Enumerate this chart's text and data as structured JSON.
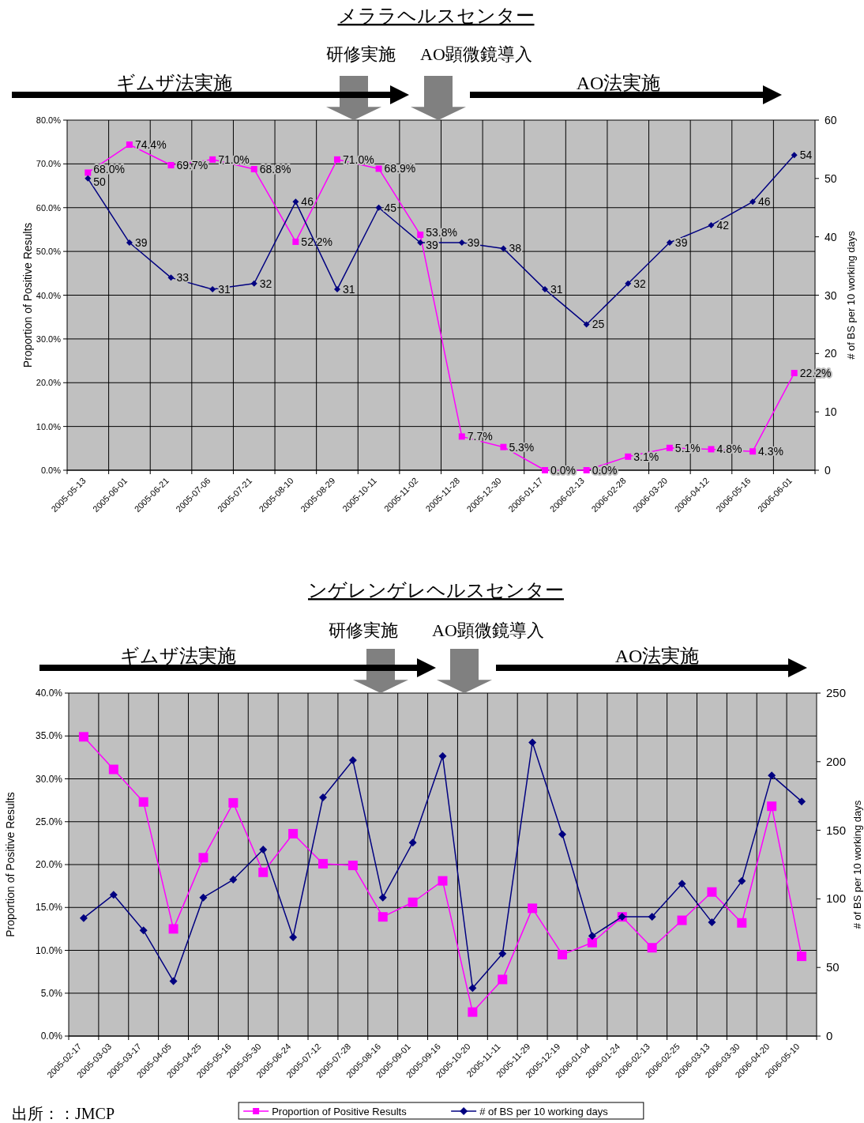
{
  "chart_data": [
    {
      "type": "line",
      "title": "メララヘルスセンター",
      "ylabel": "Proportion of Positive Results",
      "y2label": "# of BS per 10 working days",
      "categories": [
        "2005-05-13",
        "2005-06-01",
        "2005-06-21",
        "2005-07-06",
        "2005-07-21",
        "2005-08-10",
        "2005-08-29",
        "2005-10-11",
        "2005-11-02",
        "2005-11-28",
        "2005-12-30",
        "2006-01-17",
        "2006-02-13",
        "2006-02-28",
        "2006-03-20",
        "2006-04-12",
        "2006-05-16",
        "2006-06-01"
      ],
      "series": [
        {
          "color": "#ff00ff",
          "marker": "square",
          "axis": "y",
          "values": [
            68.0,
            74.4,
            69.7,
            71.0,
            68.8,
            52.2,
            71.0,
            68.9,
            53.8,
            7.7,
            5.3,
            0.0,
            0.0,
            3.1,
            5.1,
            4.8,
            4.3,
            22.2
          ],
          "value_labels": [
            "68.0%",
            "74.4%",
            "69.7%",
            "71.0%",
            "68.8%",
            "52.2%",
            "71.0%",
            "68.9%",
            "53.8%",
            "7.7%",
            "5.3%",
            "0.0%",
            "0.0%",
            "3.1%",
            "5.1%",
            "4.8%",
            "4.3%",
            "22.2%"
          ]
        },
        {
          "color": "#000080",
          "marker": "diamond",
          "axis": "y2",
          "values": [
            50,
            39,
            33,
            31,
            32,
            46,
            31,
            45,
            39,
            39,
            38,
            31,
            25,
            32,
            39,
            42,
            46,
            54
          ],
          "value_labels": [
            "50",
            "39",
            "33",
            "31",
            "32",
            "46",
            "31",
            "45",
            "39",
            "39",
            "38",
            "31",
            "25",
            "32",
            "39",
            "42",
            "46",
            "54"
          ]
        }
      ],
      "ylim": [
        0,
        80
      ],
      "yticks": [
        {
          "value": 0,
          "label": "0.0%"
        },
        {
          "value": 10,
          "label": "10.0%"
        },
        {
          "value": 20,
          "label": "20.0%"
        },
        {
          "value": 30,
          "label": "30.0%"
        },
        {
          "value": 40,
          "label": "40.0%"
        },
        {
          "value": 50,
          "label": "50.0%"
        },
        {
          "value": 60,
          "label": "60.0%"
        },
        {
          "value": 70,
          "label": "70.0%"
        },
        {
          "value": 80,
          "label": "80.0%"
        }
      ],
      "y2lim": [
        0,
        60
      ],
      "y2ticks": [
        0,
        10,
        20,
        30,
        40,
        50,
        60
      ],
      "grid": true,
      "legend": false,
      "annotations": [
        "研修実施",
        "AO顕微鏡導入",
        "ギムザ法実施",
        "AO法実施"
      ]
    },
    {
      "type": "line",
      "title": "ンゲレンゲレヘルスセンター",
      "ylabel": "Proportion of Positive Results",
      "y2label": "# of BS per 10 working days",
      "categories": [
        "2005-02-17",
        "2005-03-03",
        "2005-03-17",
        "2005-04-05",
        "2005-04-25",
        "2005-05-16",
        "2005-05-30",
        "2005-06-24",
        "2005-07-12",
        "2005-07-28",
        "2005-08-16",
        "2005-09-01",
        "2005-09-16",
        "2005-10-20",
        "2005-11-11",
        "2005-11-29",
        "2005-12-19",
        "2006-01-04",
        "2006-01-24",
        "2006-02-13",
        "2006-02-25",
        "2006-03-13",
        "2006-03-30",
        "2006-04-20",
        "2006-05-10"
      ],
      "series": [
        {
          "name": "Proportion of Positive Results",
          "color": "#ff00ff",
          "marker": "square",
          "axis": "y",
          "values": [
            34.9,
            31.1,
            27.3,
            12.5,
            20.8,
            27.2,
            19.1,
            23.6,
            20.1,
            19.9,
            13.9,
            15.6,
            18.1,
            2.8,
            6.6,
            14.9,
            9.5,
            10.9,
            13.9,
            10.3,
            13.5,
            16.8,
            13.2,
            26.8,
            9.3
          ]
        },
        {
          "name": "# of BS per 10 working days",
          "color": "#000080",
          "marker": "diamond",
          "axis": "y2",
          "values": [
            86,
            103,
            77,
            40,
            101,
            114,
            136,
            72,
            174,
            201,
            101,
            141,
            204,
            35,
            60,
            214,
            147,
            73,
            87,
            87,
            111,
            83,
            113,
            190,
            171
          ]
        }
      ],
      "ylim": [
        0,
        40
      ],
      "yticks": [
        {
          "value": 0,
          "label": "0.0%"
        },
        {
          "value": 5,
          "label": "5.0%"
        },
        {
          "value": 10,
          "label": "10.0%"
        },
        {
          "value": 15,
          "label": "15.0%"
        },
        {
          "value": 20,
          "label": "20.0%"
        },
        {
          "value": 25,
          "label": "25.0%"
        },
        {
          "value": 30,
          "label": "30.0%"
        },
        {
          "value": 35,
          "label": "35.0%"
        },
        {
          "value": 40,
          "label": "40.0%"
        }
      ],
      "y2lim": [
        0,
        250
      ],
      "y2ticks": [
        0,
        50,
        100,
        150,
        200,
        250
      ],
      "grid": true,
      "legend": "bottom",
      "annotations": [
        "研修実施",
        "AO顕微鏡導入",
        "ギムザ法実施",
        "AO法実施",
        "出所：：JMCP"
      ]
    }
  ]
}
